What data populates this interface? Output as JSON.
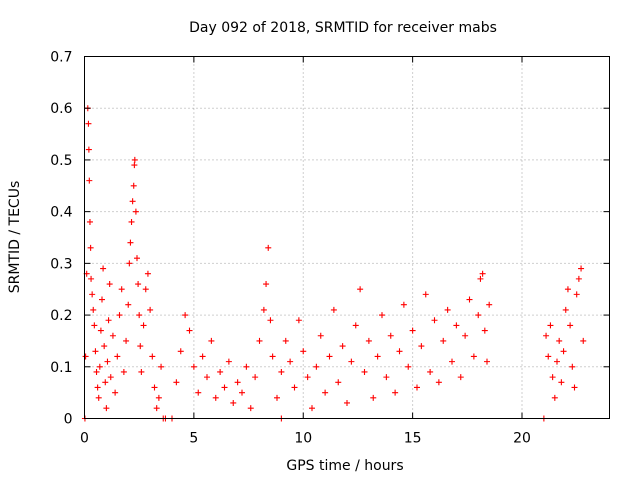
{
  "chart_data": {
    "type": "scatter",
    "title": "Day 092 of 2018, SRMTID for receiver mabs",
    "xlabel": "GPS time / hours",
    "ylabel": "SRMTID / TECUs",
    "xlim": [
      0,
      24
    ],
    "ylim": [
      0,
      0.7
    ],
    "xticks": [
      0,
      5,
      10,
      15,
      20
    ],
    "xtick_labels": [
      "0",
      "5",
      "10",
      "15",
      "20"
    ],
    "yticks": [
      0,
      0.1,
      0.2,
      0.3,
      0.4,
      0.5,
      0.6,
      0.7
    ],
    "ytick_labels": [
      "0",
      "0.1",
      "0.2",
      "0.3",
      "0.4",
      "0.5",
      "0.6",
      "0.7"
    ],
    "grid": true,
    "marker": "plus",
    "color": "#ff0000",
    "series": [
      {
        "name": "SRMTID",
        "points": [
          [
            0.05,
            0.12
          ],
          [
            0.1,
            0.28
          ],
          [
            0.15,
            0.6
          ],
          [
            0.18,
            0.57
          ],
          [
            0.2,
            0.52
          ],
          [
            0.22,
            0.46
          ],
          [
            0.25,
            0.38
          ],
          [
            0.28,
            0.33
          ],
          [
            0.3,
            0.27
          ],
          [
            0.35,
            0.24
          ],
          [
            0.4,
            0.21
          ],
          [
            0.45,
            0.18
          ],
          [
            0.5,
            0.13
          ],
          [
            0.55,
            0.09
          ],
          [
            0.6,
            0.06
          ],
          [
            0.65,
            0.04
          ],
          [
            0.7,
            0.1
          ],
          [
            0.75,
            0.17
          ],
          [
            0.8,
            0.23
          ],
          [
            0.85,
            0.29
          ],
          [
            0.9,
            0.14
          ],
          [
            0.95,
            0.07
          ],
          [
            1.0,
            0.02
          ],
          [
            1.05,
            0.11
          ],
          [
            1.1,
            0.19
          ],
          [
            1.15,
            0.26
          ],
          [
            1.2,
            0.08
          ],
          [
            1.3,
            0.16
          ],
          [
            1.4,
            0.05
          ],
          [
            1.5,
            0.12
          ],
          [
            1.6,
            0.2
          ],
          [
            1.7,
            0.25
          ],
          [
            1.8,
            0.09
          ],
          [
            1.9,
            0.15
          ],
          [
            2.0,
            0.22
          ],
          [
            2.05,
            0.3
          ],
          [
            2.1,
            0.34
          ],
          [
            2.15,
            0.38
          ],
          [
            2.2,
            0.42
          ],
          [
            2.25,
            0.45
          ],
          [
            2.28,
            0.49
          ],
          [
            2.3,
            0.5
          ],
          [
            2.35,
            0.4
          ],
          [
            2.4,
            0.31
          ],
          [
            2.45,
            0.26
          ],
          [
            2.5,
            0.2
          ],
          [
            2.55,
            0.14
          ],
          [
            2.6,
            0.09
          ],
          [
            2.7,
            0.18
          ],
          [
            2.8,
            0.25
          ],
          [
            2.9,
            0.28
          ],
          [
            3.0,
            0.21
          ],
          [
            3.1,
            0.12
          ],
          [
            3.2,
            0.06
          ],
          [
            3.3,
            0.02
          ],
          [
            3.4,
            0.04
          ],
          [
            3.5,
            0.1
          ],
          [
            0.02,
            0.0
          ],
          [
            3.6,
            0.0
          ],
          [
            3.7,
            0.0
          ],
          [
            4.0,
            0.0
          ],
          [
            9.0,
            0.0
          ],
          [
            21.0,
            0.0
          ],
          [
            4.2,
            0.07
          ],
          [
            4.4,
            0.13
          ],
          [
            4.6,
            0.2
          ],
          [
            4.8,
            0.17
          ],
          [
            5.0,
            0.1
          ],
          [
            5.2,
            0.05
          ],
          [
            5.4,
            0.12
          ],
          [
            5.6,
            0.08
          ],
          [
            5.8,
            0.15
          ],
          [
            6.0,
            0.04
          ],
          [
            6.2,
            0.09
          ],
          [
            6.4,
            0.06
          ],
          [
            6.6,
            0.11
          ],
          [
            6.8,
            0.03
          ],
          [
            7.0,
            0.07
          ],
          [
            7.2,
            0.05
          ],
          [
            7.4,
            0.1
          ],
          [
            7.6,
            0.02
          ],
          [
            7.8,
            0.08
          ],
          [
            8.0,
            0.15
          ],
          [
            8.2,
            0.21
          ],
          [
            8.3,
            0.26
          ],
          [
            8.4,
            0.33
          ],
          [
            8.5,
            0.19
          ],
          [
            8.6,
            0.12
          ],
          [
            8.8,
            0.04
          ],
          [
            9.0,
            0.09
          ],
          [
            9.2,
            0.15
          ],
          [
            9.4,
            0.11
          ],
          [
            9.6,
            0.06
          ],
          [
            9.8,
            0.19
          ],
          [
            10.0,
            0.13
          ],
          [
            10.2,
            0.08
          ],
          [
            10.4,
            0.02
          ],
          [
            10.6,
            0.1
          ],
          [
            10.8,
            0.16
          ],
          [
            11.0,
            0.05
          ],
          [
            11.2,
            0.12
          ],
          [
            11.4,
            0.21
          ],
          [
            11.6,
            0.07
          ],
          [
            11.8,
            0.14
          ],
          [
            12.0,
            0.03
          ],
          [
            12.2,
            0.11
          ],
          [
            12.4,
            0.18
          ],
          [
            12.6,
            0.25
          ],
          [
            12.8,
            0.09
          ],
          [
            13.0,
            0.15
          ],
          [
            13.2,
            0.04
          ],
          [
            13.4,
            0.12
          ],
          [
            13.6,
            0.2
          ],
          [
            13.8,
            0.08
          ],
          [
            14.0,
            0.16
          ],
          [
            14.2,
            0.05
          ],
          [
            14.4,
            0.13
          ],
          [
            14.6,
            0.22
          ],
          [
            14.8,
            0.1
          ],
          [
            15.0,
            0.17
          ],
          [
            15.2,
            0.06
          ],
          [
            15.4,
            0.14
          ],
          [
            15.6,
            0.24
          ],
          [
            15.8,
            0.09
          ],
          [
            16.0,
            0.19
          ],
          [
            16.2,
            0.07
          ],
          [
            16.4,
            0.15
          ],
          [
            16.6,
            0.21
          ],
          [
            16.8,
            0.11
          ],
          [
            17.0,
            0.18
          ],
          [
            17.2,
            0.08
          ],
          [
            17.4,
            0.16
          ],
          [
            17.6,
            0.23
          ],
          [
            17.8,
            0.12
          ],
          [
            18.0,
            0.2
          ],
          [
            18.1,
            0.27
          ],
          [
            18.2,
            0.28
          ],
          [
            18.3,
            0.17
          ],
          [
            18.4,
            0.11
          ],
          [
            18.5,
            0.22
          ],
          [
            21.1,
            0.16
          ],
          [
            21.2,
            0.12
          ],
          [
            21.3,
            0.18
          ],
          [
            21.4,
            0.08
          ],
          [
            21.5,
            0.04
          ],
          [
            21.6,
            0.11
          ],
          [
            21.7,
            0.15
          ],
          [
            21.8,
            0.07
          ],
          [
            21.9,
            0.13
          ],
          [
            22.0,
            0.21
          ],
          [
            22.1,
            0.25
          ],
          [
            22.2,
            0.18
          ],
          [
            22.3,
            0.1
          ],
          [
            22.4,
            0.06
          ],
          [
            22.5,
            0.24
          ],
          [
            22.6,
            0.27
          ],
          [
            22.7,
            0.29
          ],
          [
            22.8,
            0.15
          ]
        ]
      }
    ]
  }
}
